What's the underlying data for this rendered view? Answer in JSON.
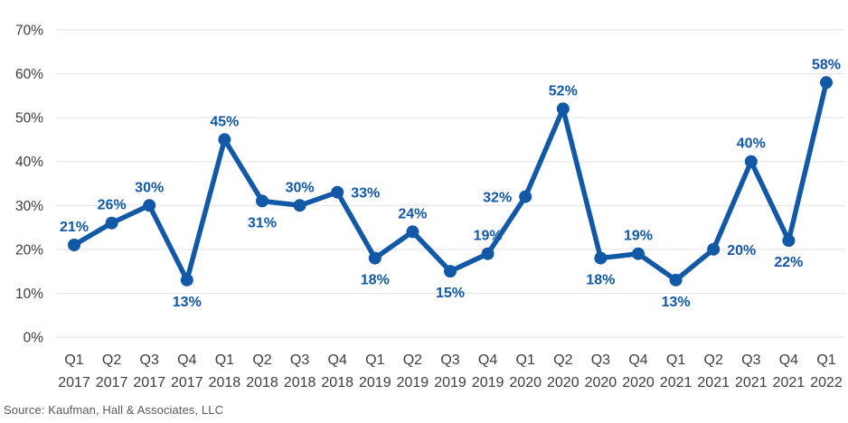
{
  "source": "Source: Kaufman, Hall & Associates, LLC",
  "colors": {
    "line": "#1158a6",
    "marker": "#1158a6",
    "data_label": "#1158a6",
    "axis_text": "#3d3d3d",
    "grid": "#e2e2e2",
    "source_text": "#595959",
    "background": "#ffffff"
  },
  "chart_data": {
    "type": "line",
    "title": "",
    "xlabel": "",
    "ylabel": "",
    "categories": [
      "Q1 2017",
      "Q2 2017",
      "Q3 2017",
      "Q4 2017",
      "Q1 2018",
      "Q2 2018",
      "Q3 2018",
      "Q4 2018",
      "Q1 2019",
      "Q2 2019",
      "Q3 2019",
      "Q4 2019",
      "Q1 2020",
      "Q2 2020",
      "Q3 2020",
      "Q4 2020",
      "Q1 2021",
      "Q2 2021",
      "Q3 2021",
      "Q4 2021",
      "Q1 2022"
    ],
    "values": [
      21,
      26,
      30,
      13,
      45,
      31,
      30,
      33,
      18,
      24,
      15,
      19,
      32,
      52,
      18,
      19,
      13,
      20,
      40,
      22,
      58
    ],
    "point_labels": [
      "21%",
      "26%",
      "30%",
      "13%",
      "45%",
      "31%",
      "30%",
      "33%",
      "18%",
      "24%",
      "15%",
      "19%",
      "32%",
      "52%",
      "18%",
      "19%",
      "13%",
      "20%",
      "40%",
      "22%",
      "58%"
    ],
    "label_positions": [
      "above",
      "above",
      "above",
      "below",
      "above",
      "below",
      "above",
      "right",
      "below",
      "above",
      "below",
      "above",
      "left",
      "above",
      "below",
      "above",
      "below",
      "right",
      "above",
      "below",
      "above"
    ],
    "ylim": [
      0,
      70
    ],
    "ytick_step": 10,
    "ytick_labels": [
      "0%",
      "10%",
      "20%",
      "30%",
      "40%",
      "50%",
      "60%",
      "70%"
    ],
    "grid": "horizontal",
    "legend": "none",
    "marker": "circle"
  }
}
